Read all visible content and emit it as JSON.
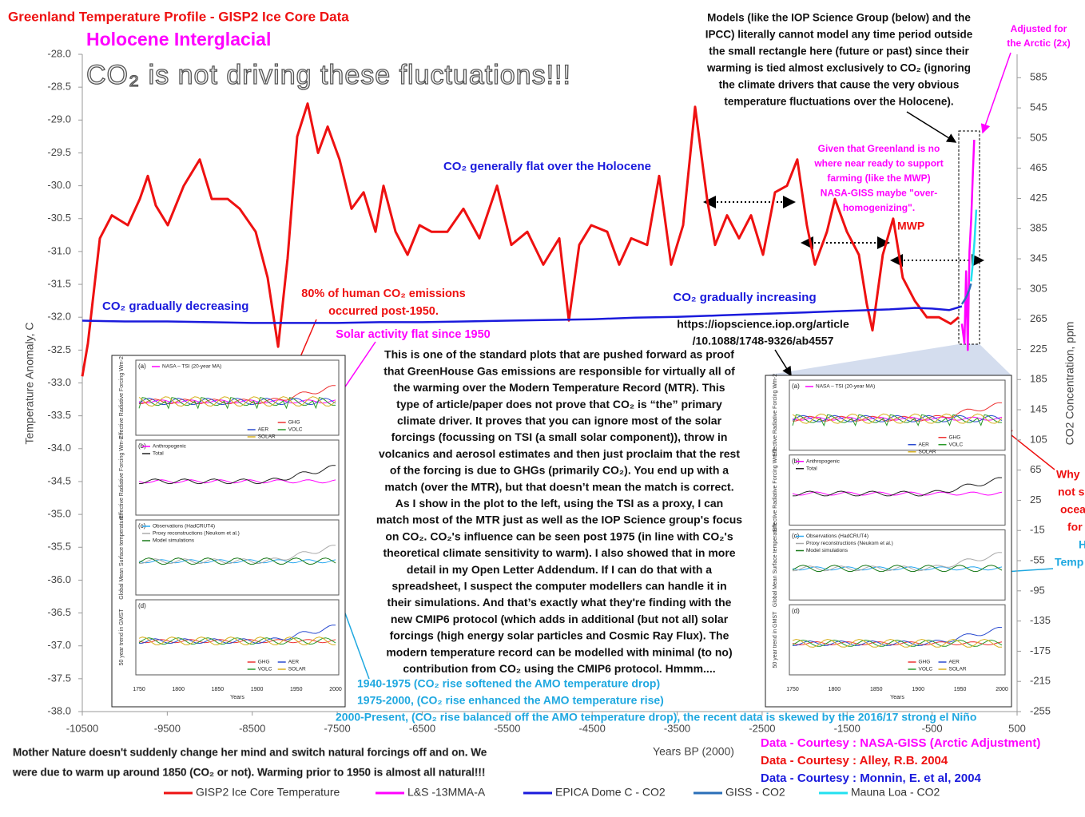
{
  "chart_data": {
    "type": "line",
    "title": "Greenland Temperature Profile - GISP2 Ice Core Data",
    "subtitle": "Holocene Interglacial",
    "headline": "CO₂ is not driving these fluctuations!!!",
    "xlabel": "Years BP (2000)",
    "ylabel": "Temperature Anomaly, C",
    "y2label": "CO2 Concentration, ppm",
    "xlim": [
      -10500,
      500
    ],
    "xticks": [
      -10500,
      -9500,
      -8500,
      -7500,
      -6500,
      -5500,
      -4500,
      -3500,
      -2500,
      -1500,
      -500,
      500
    ],
    "ylim": [
      -38,
      -28
    ],
    "yticks": [
      {
        "value": -28,
        "label": "-28.0"
      },
      -28.5,
      {
        "value": -29,
        "label": "-29.0"
      },
      -29.5,
      {
        "value": -30,
        "label": "-30.0"
      },
      -30.5,
      {
        "value": -31,
        "label": "-31.0"
      },
      -31.5,
      {
        "value": -32,
        "label": "-32.0"
      },
      -32.5,
      {
        "value": -33,
        "label": "-33.0"
      },
      -33.5,
      {
        "value": -34,
        "label": "-34.0"
      },
      -34.5,
      {
        "value": -35,
        "label": "-35.0"
      },
      -35.5,
      {
        "value": -36,
        "label": "-36.0"
      },
      -36.5,
      {
        "value": -37,
        "label": "-37.0"
      },
      -37.5,
      {
        "value": -38,
        "label": "-38.0"
      }
    ],
    "y2lim": [
      -255,
      616
    ],
    "y2ticks": [
      585,
      545,
      505,
      465,
      425,
      385,
      345,
      305,
      265,
      225,
      185,
      145,
      105,
      65,
      25,
      -15,
      -55,
      -95,
      -135,
      -175,
      -215,
      -255
    ],
    "series": [
      {
        "name": "GISP2 Ice Core Temperature",
        "color": "#ee1111",
        "x": [
          -10500,
          -10434,
          -10293,
          -10152,
          -9964,
          -9823,
          -9729,
          -9635,
          -9494,
          -9306,
          -9118,
          -8977,
          -8789,
          -8648,
          -8460,
          -8319,
          -8196,
          -8084,
          -7971,
          -7849,
          -7726,
          -7613,
          -7473,
          -7332,
          -7190,
          -7050,
          -6956,
          -6814,
          -6673,
          -6532,
          -6391,
          -6203,
          -6015,
          -5827,
          -5620,
          -5451,
          -5263,
          -5075,
          -4887,
          -4774,
          -4652,
          -4511,
          -4323,
          -4182,
          -4041,
          -3853,
          -3712,
          -3571,
          -3430,
          -3289,
          -3148,
          -3054,
          -2913,
          -2772,
          -2631,
          -2490,
          -2349,
          -2208,
          -2086,
          -1974,
          -1879,
          -1738,
          -1644,
          -1503,
          -1362,
          -1268,
          -1202,
          -1080,
          -958,
          -845,
          -704,
          -562,
          -421,
          -280,
          -186
        ],
        "values": [
          -32.9,
          -32.4,
          -30.8,
          -30.45,
          -30.6,
          -30.2,
          -29.85,
          -30.3,
          -30.6,
          -30.0,
          -29.6,
          -30.2,
          -30.2,
          -30.35,
          -30.7,
          -31.4,
          -32.45,
          -31.1,
          -29.25,
          -28.75,
          -29.5,
          -29.1,
          -29.6,
          -30.35,
          -30.1,
          -30.7,
          -30.0,
          -30.7,
          -31.05,
          -30.6,
          -30.7,
          -30.7,
          -30.35,
          -30.8,
          -30.0,
          -30.9,
          -30.7,
          -31.2,
          -30.8,
          -32.05,
          -30.9,
          -30.6,
          -30.7,
          -31.2,
          -30.8,
          -30.9,
          -29.85,
          -31.2,
          -30.6,
          -28.8,
          -30.2,
          -30.9,
          -30.45,
          -30.8,
          -30.45,
          -31.05,
          -30.1,
          -30.0,
          -29.6,
          -30.6,
          -31.2,
          -30.7,
          -30.2,
          -30.7,
          -31.05,
          -31.8,
          -32.2,
          -31.05,
          -30.5,
          -31.4,
          -31.75,
          -32.0,
          -32.0,
          -32.1,
          -32.0
        ]
      },
      {
        "name": "L&S -13MMA-A",
        "color": "#ff00ff",
        "x": [
          -150,
          -120,
          -100,
          -80,
          -60,
          -40,
          -20,
          -5
        ],
        "values": [
          -32.1,
          -32.4,
          -31.3,
          -32.5,
          -31.0,
          -30.5,
          -29.8,
          -29.3
        ]
      },
      {
        "name": "EPICA Dome C - CO2",
        "color": "#1a1adc",
        "axis": "y2",
        "x": [
          -10500,
          -10000,
          -9500,
          -9000,
          -8500,
          -8000,
          -7500,
          -7000,
          -6500,
          -6000,
          -5500,
          -5000,
          -4500,
          -4000,
          -3500,
          -3000,
          -2500,
          -2000,
          -1500,
          -1000,
          -700,
          -500,
          -300,
          -150
        ],
        "values": [
          263,
          262,
          262,
          261,
          260,
          260,
          260,
          261,
          261,
          262,
          263,
          264,
          265,
          267,
          268,
          270,
          272,
          274,
          276,
          278,
          280,
          279,
          277,
          282
        ]
      },
      {
        "name": "GISS - CO2",
        "color": "#2a6fb8",
        "axis": "y2",
        "x": [
          -150,
          -120,
          -90,
          -60,
          -42
        ],
        "values": [
          285,
          290,
          296,
          305,
          312
        ]
      },
      {
        "name": "Mauna Loa - CO2",
        "color": "#22e0f0",
        "axis": "y2",
        "x": [
          -42,
          -20,
          0,
          20
        ],
        "values": [
          315,
          340,
          370,
          410
        ]
      }
    ],
    "annotations": {
      "models": [
        "Models (like the IOP Science Group (below) and the",
        "IPCC) literally cannot model any time period outside",
        "the small rectangle here (future or past) since their",
        "warming is tied almost exclusively to CO₂ (ignoring",
        "the climate drivers that cause the very obvious",
        "temperature fluctuations over the Holocene)."
      ],
      "adjusted": [
        "Adjusted for",
        "the Arctic (2x)"
      ],
      "greenland": [
        "Given that Greenland is no",
        "where near ready to support",
        "farming (like the MWP)",
        "NASA-GISS maybe \"over-",
        "homogenizing\"."
      ],
      "co2_flat": [
        "CO₂ generally flat over the Holocene"
      ],
      "co2_decr": [
        "CO₂ gradually decreasing"
      ],
      "co2_incr": [
        "CO₂ gradually increasing"
      ],
      "human": [
        "80% of human CO₂ emissions",
        "occurred post-1950."
      ],
      "solar": [
        "Solar activity flat since 1950"
      ],
      "mwp": [
        "MWP"
      ],
      "url": [
        "https://iopscience.iop.org/article",
        "/10.1088/1748-9326/ab4557"
      ],
      "body": [
        "This is one of the standard plots that are pushed forward as proof",
        "that GreenHouse Gas emissions are responsible for virtually all of",
        "the warming over the Modern Temperature Record (MTR). This",
        "type of article/paper does not prove that CO₂ is “the” primary",
        "climate driver. It proves that you can ignore most of the solar",
        "forcings (focussing on TSI (a small solar component)), throw in",
        "volcanics and aerosol estimates and then just proclaim that the rest",
        "of the forcing is due to GHGs (primarily CO₂). You end up with a",
        "match (over the MTR), but that doesn’t mean the match is correct.",
        "As I show in the plot to the left, using the TSI as a proxy, I can",
        "match most of the MTR just as well as the IOP Science group's focus",
        "on CO₂. CO₂'s influence can be seen post 1975 (in line with CO₂'s",
        "theoretical climate sensitivity to warm). I also showed that in more",
        "detail in my Open Letter Addendum. If I can do that with a",
        "spreadsheet, I suspect the computer modellers can handle it in",
        "their simulations. And that’s exactly what they're finding with the",
        "new CMIP6 protocol (which adds in additional (but not all) solar",
        "forcings (high energy solar particles and Cosmic Ray Flux). The",
        "modern temperature record can be modelled with minimal (to no)",
        "contribution from CO₂ using the CMIP6 protocol. Hmmm...."
      ],
      "amo": [
        "1940-1975 (CO₂ rise softened the AMO temperature drop)",
        "1975-2000, (CO₂ rise enhanced the AMO temperature rise)",
        "2000-Present, (CO₂ rise balanced off the AMO temperature drop), the recent data is skewed by the 2016/17 strong el Niño"
      ],
      "mother": [
        "Mother Nature doesn't suddenly change her mind and switch natural forcings off and on. We",
        "were due to warm up around 1850 (CO₂ or not). Warming prior to 1950 is almost all natural!!!"
      ],
      "courtesy": [
        "Data - Courtesy : NASA-GISS (Arctic Adjustment)",
        "Data - Courtesy : Alley, R.B. 2004",
        "Data - Courtesy : Monnin, E. et al, 2004"
      ],
      "cut_right": [
        "Why",
        "not s",
        "ocea",
        "for",
        "H",
        "Temp"
      ]
    },
    "inset": {
      "panels": [
        "(a)",
        "(b)",
        "(c)",
        "(d)"
      ],
      "ylabels": [
        "Effective Radiative Forcing Wm-2",
        "Effective Radiative Forcing Wm-2",
        "Global Mean Surface temperature",
        "50 year trend in GMST"
      ],
      "legends": [
        [
          "NASA – TSI (20-year MA)",
          "GHG",
          "AER",
          "VOLC",
          "SOLAR"
        ],
        [
          "Anthropogenic",
          "Total"
        ],
        [
          "Observations (HadCRUT4)",
          "Proxy reconstructions (Neukom et al.)",
          "Model simulations"
        ],
        [
          "GHG",
          "AER",
          "VOLC",
          "SOLAR"
        ]
      ],
      "xticks": [
        "1750",
        "1800",
        "1850",
        "1900",
        "1950",
        "2000"
      ],
      "xlabel": "Years"
    }
  }
}
